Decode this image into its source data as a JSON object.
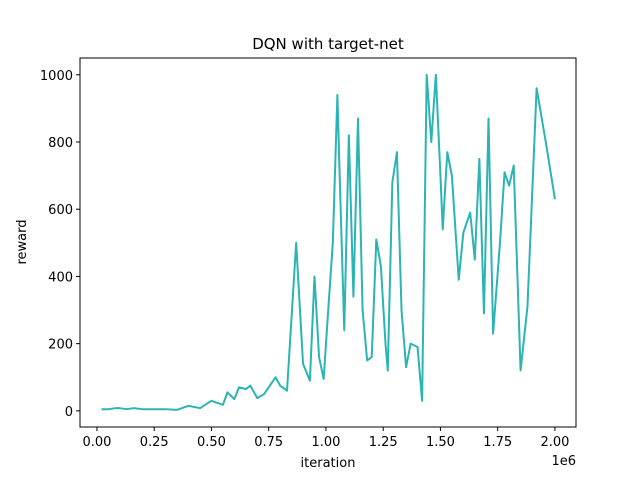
{
  "chart_data": {
    "type": "line",
    "title": "DQN with target-net",
    "xlabel": "iteration",
    "ylabel": "reward",
    "x_offset_label": "1e6",
    "x": [
      20000,
      50000,
      80000,
      100000,
      130000,
      160000,
      200000,
      250000,
      300000,
      350000,
      400000,
      450000,
      500000,
      550000,
      570000,
      600000,
      620000,
      650000,
      670000,
      700000,
      730000,
      750000,
      780000,
      800000,
      830000,
      850000,
      870000,
      880000,
      900000,
      930000,
      950000,
      970000,
      990000,
      1010000,
      1030000,
      1050000,
      1060000,
      1080000,
      1100000,
      1120000,
      1140000,
      1160000,
      1180000,
      1200000,
      1220000,
      1240000,
      1260000,
      1270000,
      1290000,
      1310000,
      1330000,
      1350000,
      1370000,
      1400000,
      1420000,
      1440000,
      1460000,
      1480000,
      1500000,
      1510000,
      1530000,
      1550000,
      1580000,
      1600000,
      1630000,
      1650000,
      1670000,
      1690000,
      1710000,
      1730000,
      1760000,
      1780000,
      1800000,
      1820000,
      1850000,
      1880000,
      1920000,
      1960000,
      2000000
    ],
    "series": [
      {
        "name": "reward",
        "color": "#2cb3b3",
        "values": [
          5,
          5,
          8,
          8,
          5,
          8,
          5,
          5,
          5,
          3,
          15,
          8,
          30,
          18,
          55,
          35,
          70,
          65,
          75,
          38,
          50,
          70,
          100,
          75,
          60,
          280,
          500,
          380,
          140,
          90,
          400,
          160,
          95,
          300,
          500,
          940,
          700,
          240,
          820,
          340,
          870,
          300,
          150,
          160,
          510,
          430,
          200,
          120,
          680,
          770,
          300,
          130,
          200,
          190,
          30,
          1000,
          800,
          1000,
          700,
          540,
          770,
          700,
          390,
          530,
          590,
          450,
          750,
          290,
          870,
          230,
          500,
          710,
          670,
          730,
          120,
          310,
          960,
          800,
          630
        ]
      }
    ],
    "xlim": [
      -74000,
      2092000
    ],
    "ylim": [
      -48,
      1050
    ],
    "xticks": [
      {
        "value": 0,
        "label": "0.00"
      },
      {
        "value": 250000,
        "label": "0.25"
      },
      {
        "value": 500000,
        "label": "0.50"
      },
      {
        "value": 750000,
        "label": "0.75"
      },
      {
        "value": 1000000,
        "label": "1.00"
      },
      {
        "value": 1250000,
        "label": "1.25"
      },
      {
        "value": 1500000,
        "label": "1.50"
      },
      {
        "value": 1750000,
        "label": "1.75"
      },
      {
        "value": 2000000,
        "label": "2.00"
      }
    ],
    "yticks": [
      0,
      200,
      400,
      600,
      800,
      1000
    ]
  }
}
